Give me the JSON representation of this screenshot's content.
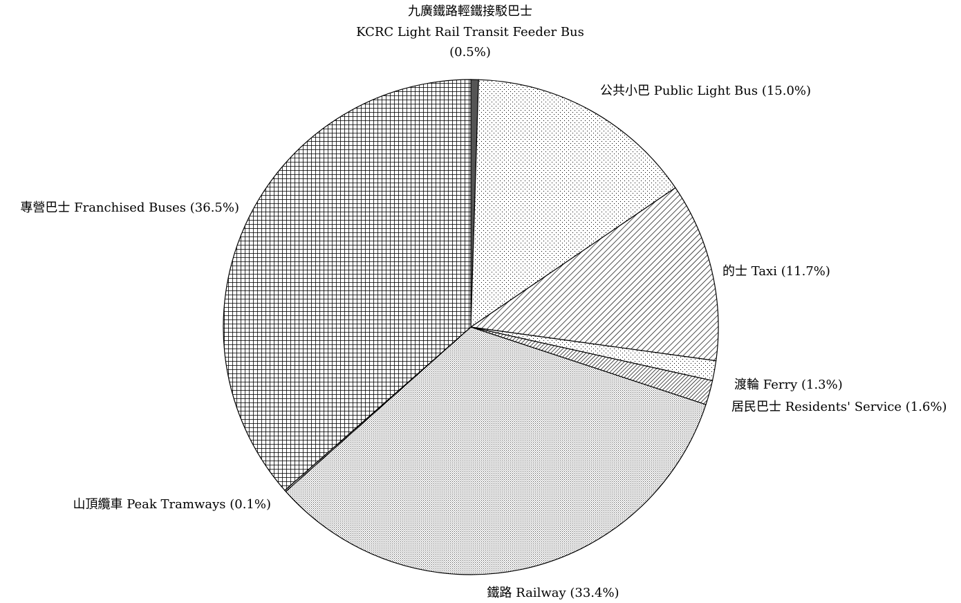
{
  "chart_data": {
    "type": "pie",
    "slices": [
      {
        "label": "九廣鐵路輕鐵接駁巴士 KCRC Light Rail Transit Feeder Bus (0.5%)",
        "value": 0.5,
        "pattern": "solid-gray"
      },
      {
        "label": "公共小巴 Public Light Bus (15.0%)",
        "value": 15.0,
        "pattern": "sparse-dots"
      },
      {
        "label": "的士 Taxi (11.7%)",
        "value": 11.7,
        "pattern": "diagonal-hatch"
      },
      {
        "label": "渡輪 Ferry (1.3%)",
        "value": 1.3,
        "pattern": "sparse-dots"
      },
      {
        "label": "居民巴士 Residents' Service (1.6%)",
        "value": 1.6,
        "pattern": "diagonal-hatch-dense"
      },
      {
        "label": "鐵路 Railway (33.4%)",
        "value": 33.4,
        "pattern": "fine-dots"
      },
      {
        "label": "山頂纜車 Peak Tramways (0.1%)",
        "value": 0.1,
        "pattern": "fine-dots"
      },
      {
        "label": "專營巴士 Franchised Buses (36.5%)",
        "value": 36.5,
        "pattern": "crosshatch"
      }
    ],
    "start": "12 o'clock",
    "direction": "clockwise"
  },
  "labels": {
    "kcrc_line1": "九廣鐵路輕鐵接駁巴士",
    "kcrc_line2": "KCRC Light Rail Transit Feeder Bus",
    "kcrc_line3": "(0.5%)",
    "light_bus": "公共小巴 Public Light Bus (15.0%)",
    "taxi": "的士 Taxi (11.7%)",
    "ferry": "渡輪 Ferry (1.3%)",
    "residents": "居民巴士 Residents' Service (1.6%)",
    "railway": "鐵路 Railway (33.4%)",
    "peak_tram": "山頂纜車 Peak Tramways (0.1%)",
    "franchised": "專營巴士 Franchised Buses (36.5%)"
  }
}
